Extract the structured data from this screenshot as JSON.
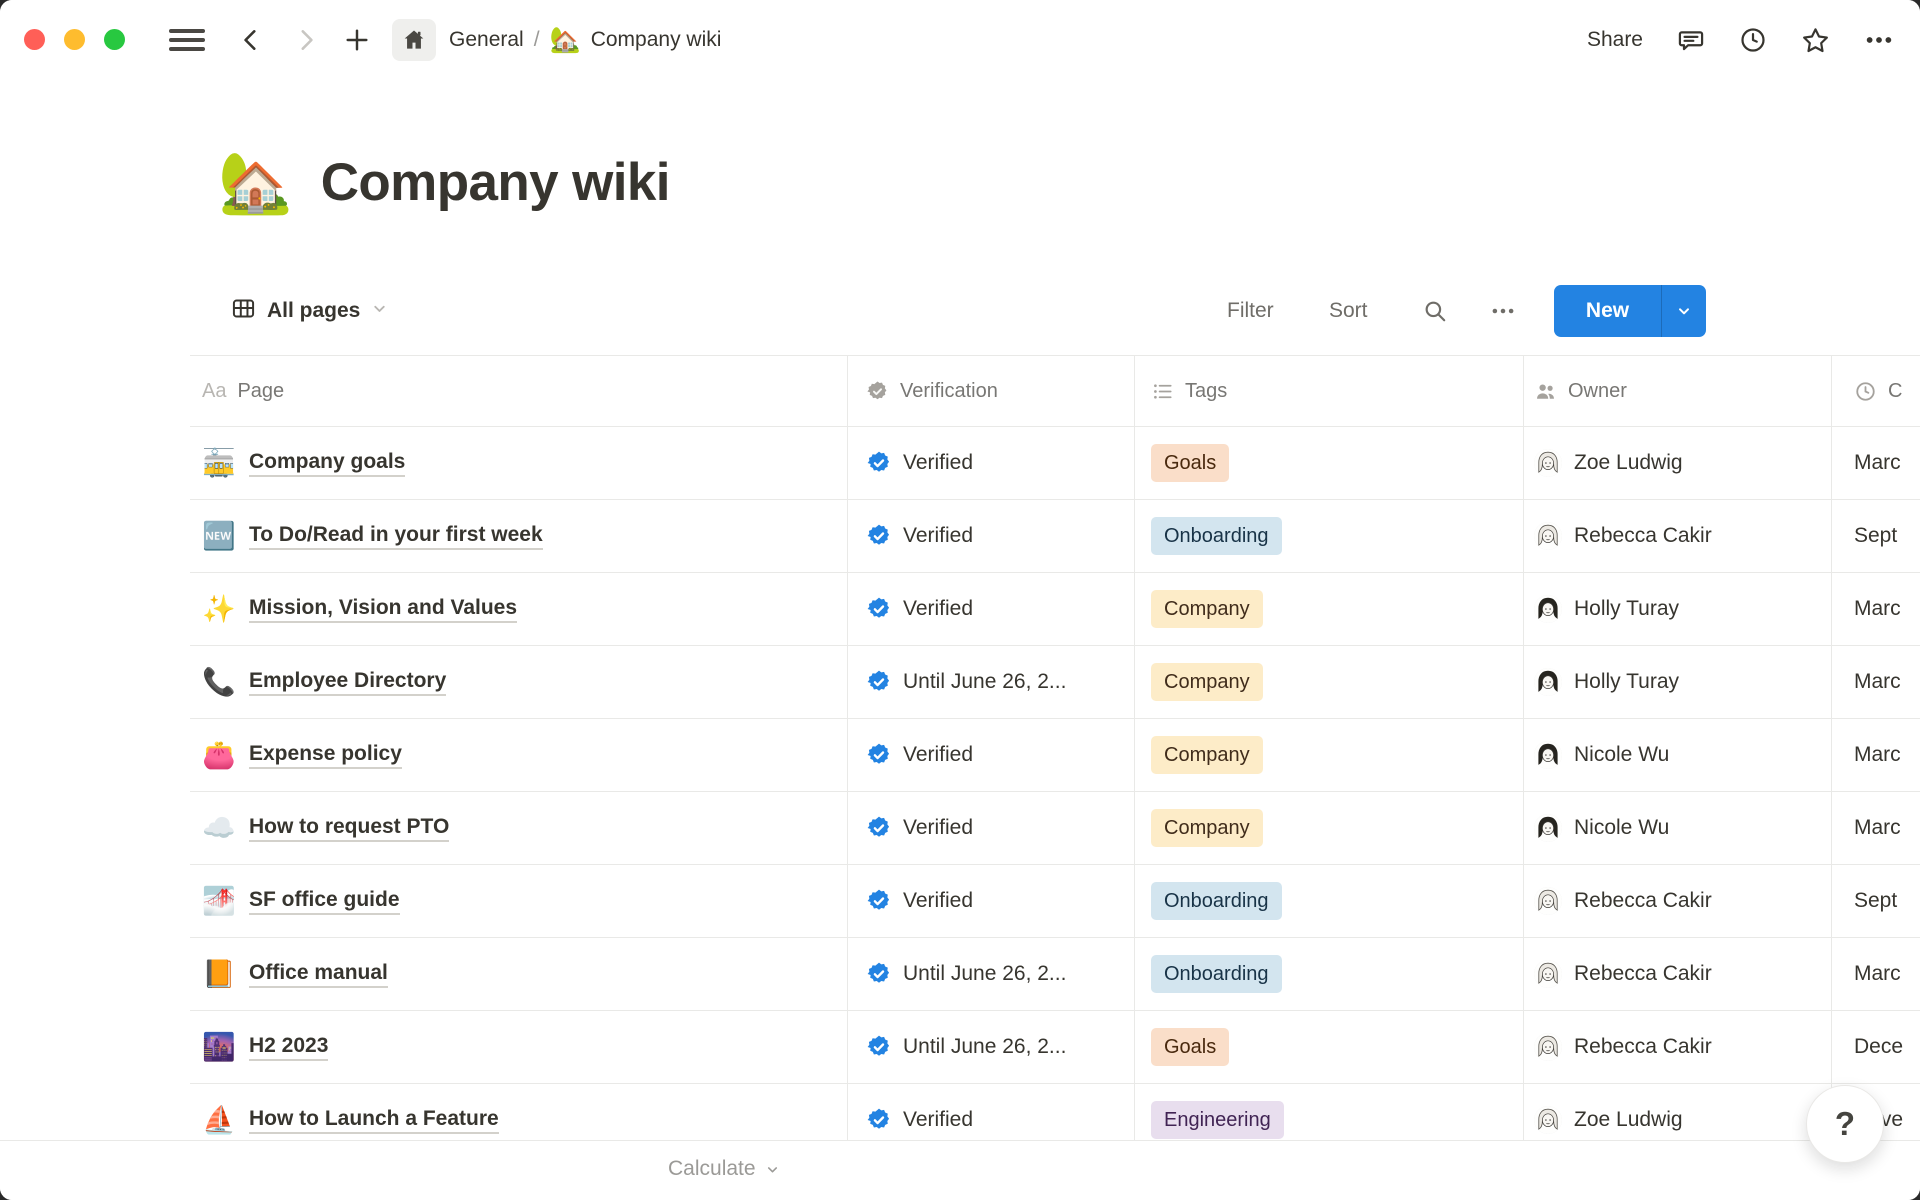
{
  "window": {
    "traffic_light_colors": [
      "#FF5F57",
      "#FEBC2E",
      "#28C840"
    ]
  },
  "topbar": {
    "breadcrumb_root": "General",
    "breadcrumb_separator": "/",
    "breadcrumb_page_icon": "🏡",
    "breadcrumb_page_title": "Company wiki",
    "share_label": "Share"
  },
  "page": {
    "icon": "🏡",
    "title": "Company wiki"
  },
  "view_bar": {
    "view_name": "All pages",
    "filter_label": "Filter",
    "sort_label": "Sort",
    "new_button_label": "New"
  },
  "table": {
    "columns": [
      {
        "id": "page",
        "label": "Page"
      },
      {
        "id": "verification",
        "label": "Verification"
      },
      {
        "id": "tags",
        "label": "Tags"
      },
      {
        "id": "owner",
        "label": "Owner"
      },
      {
        "id": "created",
        "label": "C"
      }
    ],
    "tag_colors": {
      "orange": {
        "bg": "#FADEC9",
        "text": "#49290E"
      },
      "blue": {
        "bg": "#D3E5EF",
        "text": "#183347"
      },
      "yellow": {
        "bg": "#FDECC8",
        "text": "#402C1B"
      },
      "purple": {
        "bg": "#E8DEEE",
        "text": "#412454"
      }
    },
    "rows": [
      {
        "icon": "🚋",
        "title": "Company goals",
        "verification": "Verified",
        "tag": {
          "label": "Goals",
          "color": "orange"
        },
        "owner": {
          "name": "Zoe Ludwig",
          "avatar": "light"
        },
        "created": "Marc"
      },
      {
        "icon": "🆕",
        "title": "To Do/Read in your first week",
        "verification": "Verified",
        "tag": {
          "label": "Onboarding",
          "color": "blue"
        },
        "owner": {
          "name": "Rebecca Cakir",
          "avatar": "light"
        },
        "created": "Sept"
      },
      {
        "icon": "✨",
        "title": "Mission, Vision and Values",
        "verification": "Verified",
        "tag": {
          "label": "Company",
          "color": "yellow"
        },
        "owner": {
          "name": "Holly Turay",
          "avatar": "dark"
        },
        "created": "Marc"
      },
      {
        "icon": "📞",
        "title": "Employee Directory",
        "verification": "Until June 26, 2...",
        "tag": {
          "label": "Company",
          "color": "yellow"
        },
        "owner": {
          "name": "Holly Turay",
          "avatar": "dark"
        },
        "created": "Marc"
      },
      {
        "icon": "👛",
        "title": "Expense policy",
        "verification": "Verified",
        "tag": {
          "label": "Company",
          "color": "yellow"
        },
        "owner": {
          "name": "Nicole Wu",
          "avatar": "dark"
        },
        "created": "Marc"
      },
      {
        "icon": "☁️",
        "title": "How to request PTO",
        "verification": "Verified",
        "tag": {
          "label": "Company",
          "color": "yellow"
        },
        "owner": {
          "name": "Nicole Wu",
          "avatar": "dark"
        },
        "created": "Marc"
      },
      {
        "icon": "🌁",
        "title": "SF office guide",
        "verification": "Verified",
        "tag": {
          "label": "Onboarding",
          "color": "blue"
        },
        "owner": {
          "name": "Rebecca Cakir",
          "avatar": "light"
        },
        "created": "Sept"
      },
      {
        "icon": "📙",
        "title": "Office manual",
        "verification": "Until June 26, 2...",
        "tag": {
          "label": "Onboarding",
          "color": "blue"
        },
        "owner": {
          "name": "Rebecca Cakir",
          "avatar": "light"
        },
        "created": "Marc"
      },
      {
        "icon": "🌆",
        "title": "H2 2023",
        "verification": "Until June 26, 2...",
        "tag": {
          "label": "Goals",
          "color": "orange"
        },
        "owner": {
          "name": "Rebecca Cakir",
          "avatar": "light"
        },
        "created": "Dece"
      },
      {
        "icon": "⛵",
        "title": "How to Launch a Feature",
        "verification": "Verified",
        "tag": {
          "label": "Engineering",
          "color": "purple"
        },
        "owner": {
          "name": "Zoe Ludwig",
          "avatar": "light"
        },
        "created": "Nove"
      }
    ]
  },
  "footer": {
    "calculate_label": "Calculate",
    "help_label": "?"
  },
  "colors": {
    "accent_blue": "#2383E2",
    "verified_badge_blue": "#2383E2",
    "text_primary": "#37352F",
    "text_secondary": "#787774",
    "divider": "#E9E9E7"
  }
}
